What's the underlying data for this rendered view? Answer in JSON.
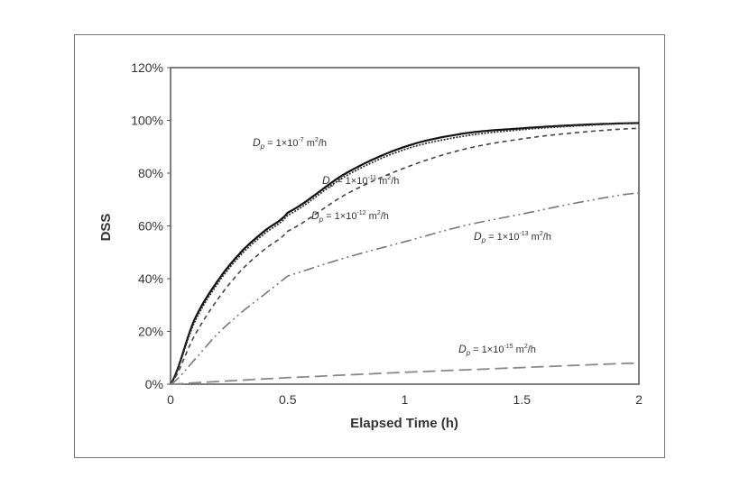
{
  "chart_data": {
    "type": "line",
    "title": "",
    "xlabel": "Elapsed Time (h)",
    "ylabel": "DSS",
    "xlim": [
      0,
      2
    ],
    "ylim": [
      0,
      120
    ],
    "xticks": [
      "0",
      "0.5",
      "1",
      "1.5",
      "2"
    ],
    "yticks": [
      "0%",
      "20%",
      "40%",
      "60%",
      "80%",
      "100%",
      "120%"
    ],
    "grid": false,
    "legend": "none (inline labels)",
    "x": [
      0,
      0.1,
      0.2,
      0.3,
      0.4,
      0.5,
      0.75,
      1,
      1.25,
      1.5,
      1.75,
      2
    ],
    "series": [
      {
        "name": "Dp = 1×10-7 m2/h",
        "label_main": "D",
        "label_sub": "p",
        "label_pre": " = 1×10",
        "label_exp": "-7",
        "label_unit": " m",
        "label_unit_exp": "2",
        "label_post": "/h",
        "style": "solid",
        "color": "#111111",
        "values": [
          0,
          24,
          39,
          50,
          58,
          65,
          80,
          90,
          95,
          97,
          98.3,
          99
        ]
      },
      {
        "name": "Dp = 1×10-11 m2/h",
        "label_main": "D",
        "label_sub": "p",
        "label_pre": " = 1×10",
        "label_exp": "-11",
        "label_unit": " m",
        "label_unit_exp": "2",
        "label_post": "/h",
        "style": "dotted",
        "color": "#333333",
        "values": [
          0,
          23,
          38,
          49,
          57,
          64,
          79,
          89,
          94,
          96.5,
          98,
          99
        ]
      },
      {
        "name": "Dp = 1×10-12 m2/h",
        "label_main": "D",
        "label_sub": "p",
        "label_pre": " = 1×10",
        "label_exp": "-12",
        "label_unit": " m",
        "label_unit_exp": "2",
        "label_post": "/h",
        "style": "dashed",
        "color": "#444444",
        "values": [
          0,
          18,
          32,
          43,
          51,
          58,
          72,
          82,
          89,
          93,
          95.5,
          97
        ]
      },
      {
        "name": "Dp = 1×10-13 m2/h",
        "label_main": "D",
        "label_sub": "p",
        "label_pre": " = 1×10",
        "label_exp": "-13",
        "label_unit": " m",
        "label_unit_exp": "2",
        "label_post": "/h",
        "style": "dash-dot-dot",
        "color": "#777777",
        "values": [
          0,
          9,
          19,
          27,
          34,
          41,
          48,
          54,
          60,
          64.5,
          69,
          72.5
        ]
      },
      {
        "name": "Dp = 1×10-15 m2/h",
        "label_main": "D",
        "label_sub": "p",
        "label_pre": " = 1×10",
        "label_exp": "-15",
        "label_unit": " m",
        "label_unit_exp": "2",
        "label_post": "/h",
        "style": "long-dash",
        "color": "#888888",
        "values": [
          0,
          0.5,
          1,
          1.5,
          2,
          2.5,
          3.5,
          4.5,
          5.4,
          6.3,
          7.2,
          8
        ]
      }
    ]
  }
}
